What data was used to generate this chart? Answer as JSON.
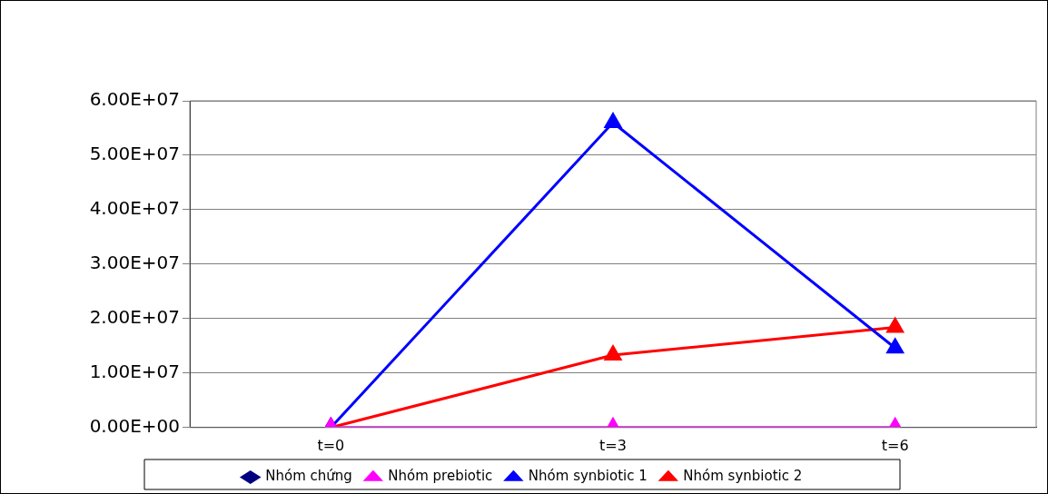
{
  "chart_data": {
    "type": "line",
    "categories": [
      "t=0",
      "t=3",
      "t=6"
    ],
    "series": [
      {
        "name": "Nhóm chứng",
        "color": "#000080",
        "marker": "diamond",
        "values": [
          null,
          null,
          null
        ]
      },
      {
        "name": "Nhóm prebiotic",
        "color": "#ff00ff",
        "marker": "triangle",
        "values": [
          0,
          0,
          0
        ]
      },
      {
        "name": "Nhóm synbiotic 1",
        "color": "#0000ff",
        "marker": "triangle",
        "values": [
          0,
          56000000,
          14600000
        ]
      },
      {
        "name": "Nhóm synbiotic 2",
        "color": "#ff0000",
        "marker": "triangle",
        "values": [
          0,
          13300000,
          18400000
        ]
      }
    ],
    "ylim": [
      0,
      60000000
    ],
    "yticks": [
      {
        "value": 0,
        "label": "0.00E+00"
      },
      {
        "value": 10000000,
        "label": "1.00E+07"
      },
      {
        "value": 20000000,
        "label": "2.00E+07"
      },
      {
        "value": 30000000,
        "label": "3.00E+07"
      },
      {
        "value": 40000000,
        "label": "4.00E+07"
      },
      {
        "value": 50000000,
        "label": "5.00E+07"
      },
      {
        "value": 60000000,
        "label": "6.00E+07"
      }
    ],
    "grid": "y",
    "legend": "bottom",
    "line_style": "solid"
  }
}
